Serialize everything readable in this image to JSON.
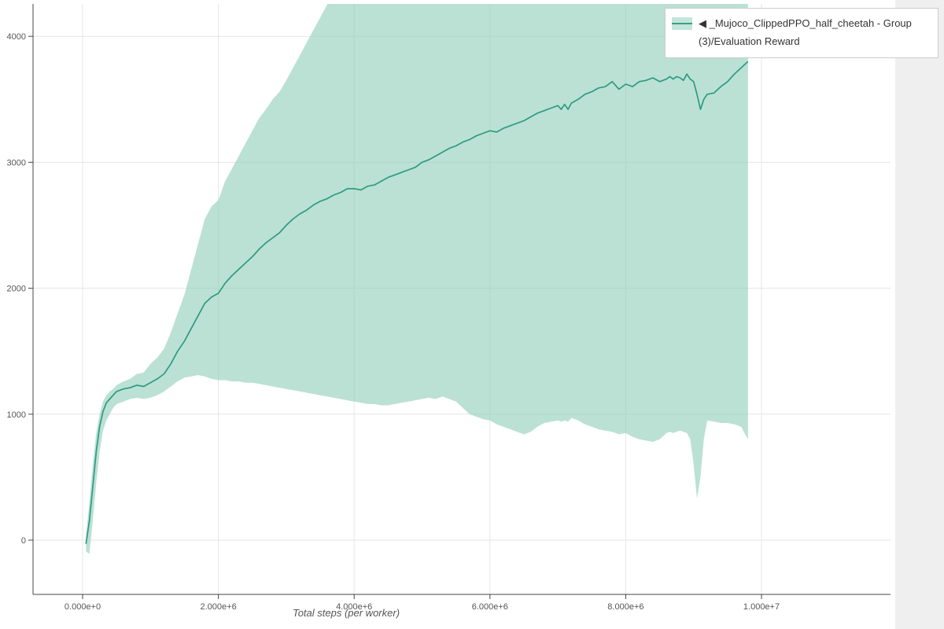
{
  "page": {
    "background_color": "#ffffff",
    "gutter_color": "#efefef"
  },
  "legend": {
    "border_color": "#cccccc",
    "items": [
      {
        "label": "◀ _Mujoco_ClippedPPO_half_cheetah - Group(3)/Evaluation Reward",
        "swatch_fill": "#8ecdb8",
        "swatch_line": "#2e9b80"
      }
    ]
  },
  "chart_data": {
    "type": "line",
    "title": "",
    "xlabel": "Total steps (per worker)",
    "ylabel": "",
    "grid": true,
    "legend_position": "top-right-outside",
    "xlim": [
      -730000,
      11900000
    ],
    "ylim": [
      -431,
      4257
    ],
    "x_ticks": [
      {
        "value": 0,
        "label": "0.000e+0"
      },
      {
        "value": 2000000,
        "label": "2.000e+6"
      },
      {
        "value": 4000000,
        "label": "4.000e+6"
      },
      {
        "value": 6000000,
        "label": "6.000e+6"
      },
      {
        "value": 8000000,
        "label": "8.000e+6"
      },
      {
        "value": 10000000,
        "label": "1.000e+7"
      }
    ],
    "y_ticks": [
      {
        "value": 0,
        "label": "0"
      },
      {
        "value": 1000,
        "label": "1000"
      },
      {
        "value": 2000,
        "label": "2000"
      },
      {
        "value": 3000,
        "label": "3000"
      },
      {
        "value": 4000,
        "label": "4000"
      }
    ],
    "grid_color": "#e5e5e5",
    "axis_color": "#444444",
    "tick_label_color": "#555555",
    "series": [
      {
        "name": "◀ _Mujoco_ClippedPPO_half_cheetah - Group(3)/Evaluation Reward",
        "color": "#2e9b80",
        "band_color": "#8ecdb8",
        "band_opacity": 0.6,
        "point_format": [
          "x",
          "mean",
          "band_lower",
          "band_upper"
        ],
        "points": [
          [
            50000,
            -30,
            -90,
            30
          ],
          [
            100000,
            150,
            -110,
            300
          ],
          [
            150000,
            420,
            150,
            600
          ],
          [
            200000,
            700,
            450,
            850
          ],
          [
            250000,
            900,
            700,
            1000
          ],
          [
            300000,
            1020,
            870,
            1100
          ],
          [
            350000,
            1090,
            950,
            1150
          ],
          [
            400000,
            1120,
            1000,
            1180
          ],
          [
            450000,
            1150,
            1050,
            1200
          ],
          [
            500000,
            1180,
            1080,
            1230
          ],
          [
            600000,
            1200,
            1100,
            1260
          ],
          [
            700000,
            1210,
            1120,
            1280
          ],
          [
            800000,
            1230,
            1130,
            1320
          ],
          [
            900000,
            1220,
            1120,
            1330
          ],
          [
            1000000,
            1250,
            1130,
            1400
          ],
          [
            1100000,
            1280,
            1150,
            1450
          ],
          [
            1200000,
            1320,
            1180,
            1520
          ],
          [
            1300000,
            1400,
            1220,
            1650
          ],
          [
            1400000,
            1500,
            1260,
            1800
          ],
          [
            1500000,
            1580,
            1290,
            1950
          ],
          [
            1600000,
            1680,
            1300,
            2150
          ],
          [
            1700000,
            1780,
            1310,
            2350
          ],
          [
            1800000,
            1880,
            1300,
            2550
          ],
          [
            1900000,
            1930,
            1280,
            2650
          ],
          [
            2000000,
            1960,
            1270,
            2700
          ],
          [
            2100000,
            2040,
            1270,
            2850
          ],
          [
            2200000,
            2100,
            1260,
            2950
          ],
          [
            2300000,
            2150,
            1260,
            3050
          ],
          [
            2400000,
            2200,
            1250,
            3150
          ],
          [
            2500000,
            2250,
            1250,
            3250
          ],
          [
            2600000,
            2310,
            1240,
            3350
          ],
          [
            2700000,
            2360,
            1230,
            3420
          ],
          [
            2800000,
            2400,
            1220,
            3500
          ],
          [
            2900000,
            2440,
            1210,
            3560
          ],
          [
            3000000,
            2500,
            1200,
            3650
          ],
          [
            3100000,
            2550,
            1190,
            3750
          ],
          [
            3200000,
            2590,
            1180,
            3850
          ],
          [
            3300000,
            2620,
            1170,
            3950
          ],
          [
            3400000,
            2660,
            1160,
            4050
          ],
          [
            3500000,
            2690,
            1150,
            4150
          ],
          [
            3600000,
            2710,
            1140,
            4250
          ],
          [
            3700000,
            2740,
            1130,
            4350
          ],
          [
            3800000,
            2760,
            1120,
            4420
          ],
          [
            3900000,
            2790,
            1110,
            4480
          ],
          [
            4000000,
            2790,
            1100,
            4500
          ],
          [
            4100000,
            2780,
            1090,
            4500
          ],
          [
            4200000,
            2810,
            1080,
            4500
          ],
          [
            4300000,
            2820,
            1080,
            4500
          ],
          [
            4400000,
            2850,
            1070,
            4500
          ],
          [
            4500000,
            2880,
            1070,
            4500
          ],
          [
            4600000,
            2900,
            1080,
            4500
          ],
          [
            4700000,
            2920,
            1090,
            4500
          ],
          [
            4800000,
            2940,
            1100,
            4500
          ],
          [
            4900000,
            2960,
            1110,
            4500
          ],
          [
            5000000,
            3000,
            1120,
            4500
          ],
          [
            5100000,
            3020,
            1130,
            4500
          ],
          [
            5200000,
            3050,
            1120,
            4500
          ],
          [
            5300000,
            3080,
            1140,
            4500
          ],
          [
            5400000,
            3110,
            1120,
            4500
          ],
          [
            5500000,
            3130,
            1100,
            4500
          ],
          [
            5600000,
            3160,
            1050,
            4500
          ],
          [
            5700000,
            3180,
            1000,
            4500
          ],
          [
            5800000,
            3210,
            980,
            4500
          ],
          [
            5900000,
            3230,
            960,
            4500
          ],
          [
            6000000,
            3250,
            950,
            4500
          ],
          [
            6100000,
            3240,
            920,
            4500
          ],
          [
            6200000,
            3270,
            900,
            4500
          ],
          [
            6300000,
            3290,
            880,
            4500
          ],
          [
            6400000,
            3310,
            860,
            4500
          ],
          [
            6500000,
            3330,
            840,
            4500
          ],
          [
            6600000,
            3360,
            860,
            4500
          ],
          [
            6700000,
            3390,
            900,
            4500
          ],
          [
            6800000,
            3410,
            930,
            4500
          ],
          [
            6900000,
            3430,
            940,
            4500
          ],
          [
            7000000,
            3450,
            950,
            4500
          ],
          [
            7050000,
            3420,
            940,
            4500
          ],
          [
            7100000,
            3460,
            950,
            4500
          ],
          [
            7150000,
            3420,
            940,
            4500
          ],
          [
            7200000,
            3470,
            970,
            4500
          ],
          [
            7300000,
            3500,
            950,
            4500
          ],
          [
            7400000,
            3540,
            920,
            4500
          ],
          [
            7500000,
            3560,
            900,
            4500
          ],
          [
            7600000,
            3590,
            880,
            4500
          ],
          [
            7700000,
            3600,
            870,
            4500
          ],
          [
            7800000,
            3640,
            860,
            4500
          ],
          [
            7900000,
            3580,
            840,
            4500
          ],
          [
            8000000,
            3620,
            850,
            4500
          ],
          [
            8100000,
            3600,
            820,
            4500
          ],
          [
            8200000,
            3640,
            800,
            4500
          ],
          [
            8300000,
            3650,
            790,
            4500
          ],
          [
            8400000,
            3670,
            780,
            4500
          ],
          [
            8500000,
            3640,
            800,
            4500
          ],
          [
            8600000,
            3660,
            850,
            4500
          ],
          [
            8650000,
            3680,
            860,
            4500
          ],
          [
            8700000,
            3660,
            850,
            4500
          ],
          [
            8750000,
            3680,
            860,
            4500
          ],
          [
            8800000,
            3670,
            870,
            4500
          ],
          [
            8850000,
            3650,
            860,
            4500
          ],
          [
            8900000,
            3700,
            850,
            4500
          ],
          [
            8950000,
            3660,
            800,
            4500
          ],
          [
            9000000,
            3640,
            600,
            4500
          ],
          [
            9050000,
            3540,
            330,
            4500
          ],
          [
            9100000,
            3420,
            500,
            4500
          ],
          [
            9150000,
            3500,
            800,
            4500
          ],
          [
            9200000,
            3540,
            950,
            4500
          ],
          [
            9300000,
            3550,
            940,
            4500
          ],
          [
            9400000,
            3600,
            930,
            4500
          ],
          [
            9500000,
            3640,
            930,
            4500
          ],
          [
            9600000,
            3700,
            920,
            4500
          ],
          [
            9700000,
            3750,
            900,
            4500
          ],
          [
            9800000,
            3800,
            800,
            4500
          ]
        ]
      }
    ]
  }
}
